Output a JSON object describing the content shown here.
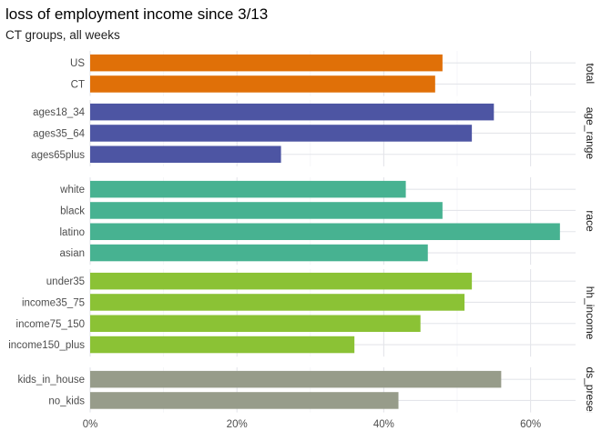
{
  "chart_data": {
    "type": "bar",
    "orientation": "horizontal",
    "title": "loss of employment income since 3/13",
    "subtitle": "CT groups, all weeks",
    "xlim": [
      0,
      0.66
    ],
    "x_ticks": [
      0,
      0.2,
      0.4,
      0.6
    ],
    "x_tick_labels": [
      "0%",
      "20%",
      "40%",
      "60%"
    ],
    "grid": true,
    "panels": [
      {
        "strip_label": "total",
        "color": "#E07008",
        "categories": [
          "US",
          "CT"
        ],
        "values": [
          0.48,
          0.47
        ]
      },
      {
        "strip_label": "age_range",
        "color": "#4D55A3",
        "categories": [
          "ages18_34",
          "ages35_64",
          "ages65plus"
        ],
        "values": [
          0.55,
          0.52,
          0.26
        ]
      },
      {
        "strip_label": "race",
        "color": "#47B291",
        "categories": [
          "white",
          "black",
          "latino",
          "asian"
        ],
        "values": [
          0.43,
          0.48,
          0.64,
          0.46
        ]
      },
      {
        "strip_label": "hh_income",
        "color": "#8BC235",
        "categories": [
          "under35",
          "income35_75",
          "income75_150",
          "income150_plus"
        ],
        "values": [
          0.52,
          0.51,
          0.45,
          0.36
        ]
      },
      {
        "strip_label": "ids_preser",
        "color": "#979C8A",
        "categories": [
          "kids_in_house",
          "no_kids"
        ],
        "values": [
          0.56,
          0.42
        ]
      }
    ]
  }
}
